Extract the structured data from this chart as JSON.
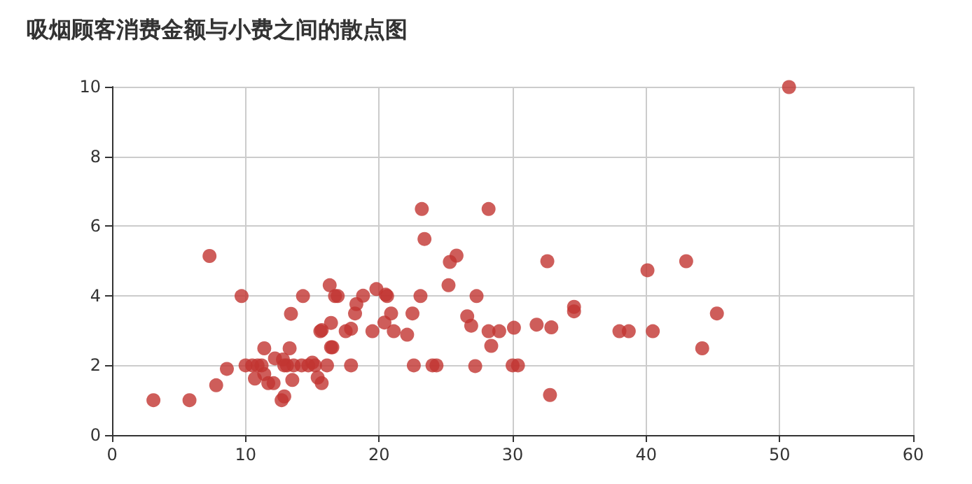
{
  "chart_data": {
    "type": "scatter",
    "title": "吸烟顾客消费金额与小费之间的散点图",
    "x": [
      3.1,
      5.8,
      7.3,
      7.8,
      8.6,
      9.7,
      10.0,
      10.5,
      10.9,
      10.7,
      11.2,
      11.4,
      11.4,
      11.7,
      12.1,
      12.2,
      12.7,
      12.9,
      12.8,
      12.9,
      13.1,
      13.6,
      13.3,
      13.5,
      13.4,
      14.3,
      14.2,
      14.7,
      15.0,
      15.2,
      15.4,
      15.7,
      16.1,
      15.6,
      15.7,
      16.4,
      16.5,
      16.4,
      16.3,
      16.7,
      16.9,
      17.5,
      17.9,
      17.9,
      18.2,
      18.3,
      18.8,
      19.5,
      19.8,
      20.4,
      20.5,
      20.6,
      20.9,
      21.1,
      22.1,
      22.5,
      22.6,
      23.1,
      23.2,
      23.4,
      24.0,
      24.3,
      25.3,
      25.8,
      25.2,
      28.2,
      27.3,
      26.6,
      26.9,
      28.2,
      29.0,
      28.4,
      30.1,
      27.2,
      30.0,
      30.4,
      31.8,
      32.9,
      32.6,
      32.8,
      34.6,
      34.6,
      38.0,
      38.7,
      40.1,
      40.5,
      43.0,
      44.2,
      45.3,
      50.7
    ],
    "values": [
      1.0,
      1.0,
      5.14,
      1.43,
      1.9,
      3.99,
      2.0,
      2.0,
      2.0,
      1.62,
      2.0,
      1.75,
      2.49,
      1.49,
      1.49,
      2.2,
      1.0,
      1.11,
      2.17,
      2.0,
      2.0,
      2.0,
      2.49,
      1.58,
      3.48,
      3.99,
      2.0,
      2.0,
      2.08,
      2.0,
      1.65,
      1.49,
      2.0,
      2.98,
      3.01,
      2.52,
      2.52,
      3.22,
      4.3,
      3.99,
      3.99,
      2.98,
      3.05,
      2.0,
      3.49,
      3.76,
      4.0,
      2.98,
      4.19,
      3.23,
      4.03,
      3.99,
      3.49,
      2.98,
      2.88,
      3.49,
      2.0,
      3.99,
      6.49,
      5.63,
      2.0,
      2.0,
      4.97,
      5.15,
      4.3,
      6.49,
      3.99,
      3.41,
      3.14,
      2.98,
      2.98,
      2.56,
      3.08,
      1.98,
      2.0,
      2.0,
      3.17,
      3.09,
      4.99,
      1.15,
      3.68,
      3.55,
      2.98,
      2.98,
      4.73,
      2.98,
      4.99,
      2.49,
      3.49,
      9.99
    ],
    "color": "#c23531",
    "marker": "circle",
    "xlim": [
      0,
      60
    ],
    "xticks": [
      0,
      10,
      20,
      30,
      40,
      50,
      60
    ],
    "ylim": [
      0,
      10
    ],
    "yticks": [
      0,
      2,
      4,
      6,
      8,
      10
    ],
    "grid": true
  }
}
